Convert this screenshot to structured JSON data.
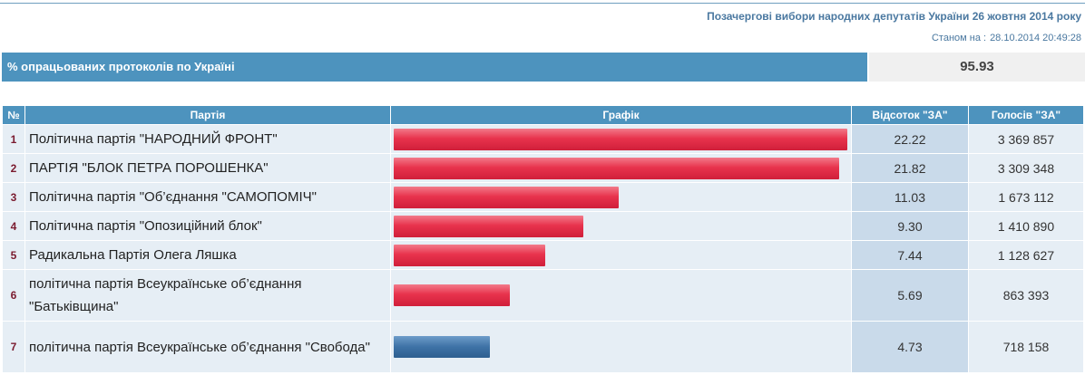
{
  "header": {
    "title": "Позачергові вибори народних депутатів України 26 жовтня 2014 року",
    "asof_label": "Станом на :",
    "asof_value": "28.10.2014 20:49:28"
  },
  "progress": {
    "label": "% опрацьованих протоколів по Україні",
    "value": "95.93"
  },
  "table": {
    "headers": {
      "num": "№",
      "party": "Партія",
      "graph": "Графік",
      "percent": "Відсоток \"ЗА\"",
      "votes": "Голосів \"ЗА\""
    },
    "max_percent": 22.22,
    "colors": {
      "red": "#e8334d",
      "blue": "#3e72a6"
    },
    "rows": [
      {
        "num": "1",
        "party": "Політична партія \"НАРОДНИЙ ФРОНТ\"",
        "percent": "22.22",
        "votes": "3 369 857",
        "bar_color": "red"
      },
      {
        "num": "2",
        "party": "ПАРТІЯ \"БЛОК ПЕТРА ПОРОШЕНКА\"",
        "percent": "21.82",
        "votes": "3 309 348",
        "bar_color": "red"
      },
      {
        "num": "3",
        "party": "Політична партія \"Об’єднання \"САМОПОМІЧ\"",
        "percent": "11.03",
        "votes": "1 673 112",
        "bar_color": "red"
      },
      {
        "num": "4",
        "party": "Політична партія \"Опозиційний блок\"",
        "percent": "9.30",
        "votes": "1 410 890",
        "bar_color": "red"
      },
      {
        "num": "5",
        "party": "Радикальна Партія Олега Ляшка",
        "percent": "7.44",
        "votes": "1 128 627",
        "bar_color": "red"
      },
      {
        "num": "6",
        "party": "політична партія Всеукраїнське об’єднання \"Батьківщина\"",
        "percent": "5.69",
        "votes": "863 393",
        "bar_color": "red"
      },
      {
        "num": "7",
        "party": "політична партія Всеукраїнське об’єднання \"Свобода\"",
        "percent": "4.73",
        "votes": "718 158",
        "bar_color": "blue"
      }
    ]
  }
}
